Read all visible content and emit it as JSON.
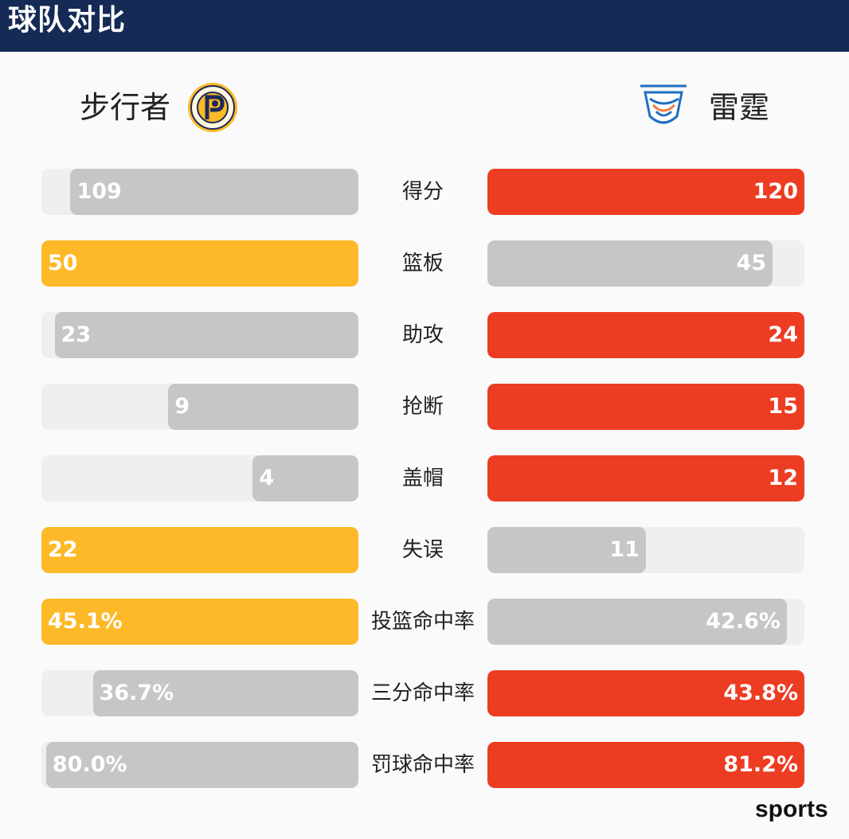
{
  "header": {
    "title": "球队对比"
  },
  "teams": {
    "left": {
      "name": "步行者"
    },
    "right": {
      "name": "雷霆"
    }
  },
  "colors": {
    "left_win": "#fdb927",
    "right_win": "#ec3c22",
    "lose": "#c6c6c8",
    "track": "#efefef",
    "header_bg": "#152a55"
  },
  "watermark": "sports",
  "chart_data": {
    "type": "bar",
    "categories": [
      "得分",
      "篮板",
      "助攻",
      "抢断",
      "盖帽",
      "失误",
      "投篮命中率",
      "三分命中率",
      "罚球命中率"
    ],
    "series": [
      {
        "name": "步行者",
        "values": [
          109,
          50,
          23,
          9,
          4,
          22,
          45.1,
          36.7,
          80.0
        ],
        "labels": [
          "109",
          "50",
          "23",
          "9",
          "4",
          "22",
          "45.1%",
          "36.7%",
          "80.0%"
        ]
      },
      {
        "name": "雷霆",
        "values": [
          120,
          45,
          24,
          15,
          12,
          11,
          42.6,
          43.8,
          81.2
        ],
        "labels": [
          "120",
          "45",
          "24",
          "15",
          "12",
          "11",
          "42.6%",
          "43.8%",
          "81.2%"
        ]
      }
    ],
    "higher_side": [
      "right",
      "left",
      "right",
      "right",
      "right",
      "left",
      "left",
      "right",
      "right"
    ]
  }
}
